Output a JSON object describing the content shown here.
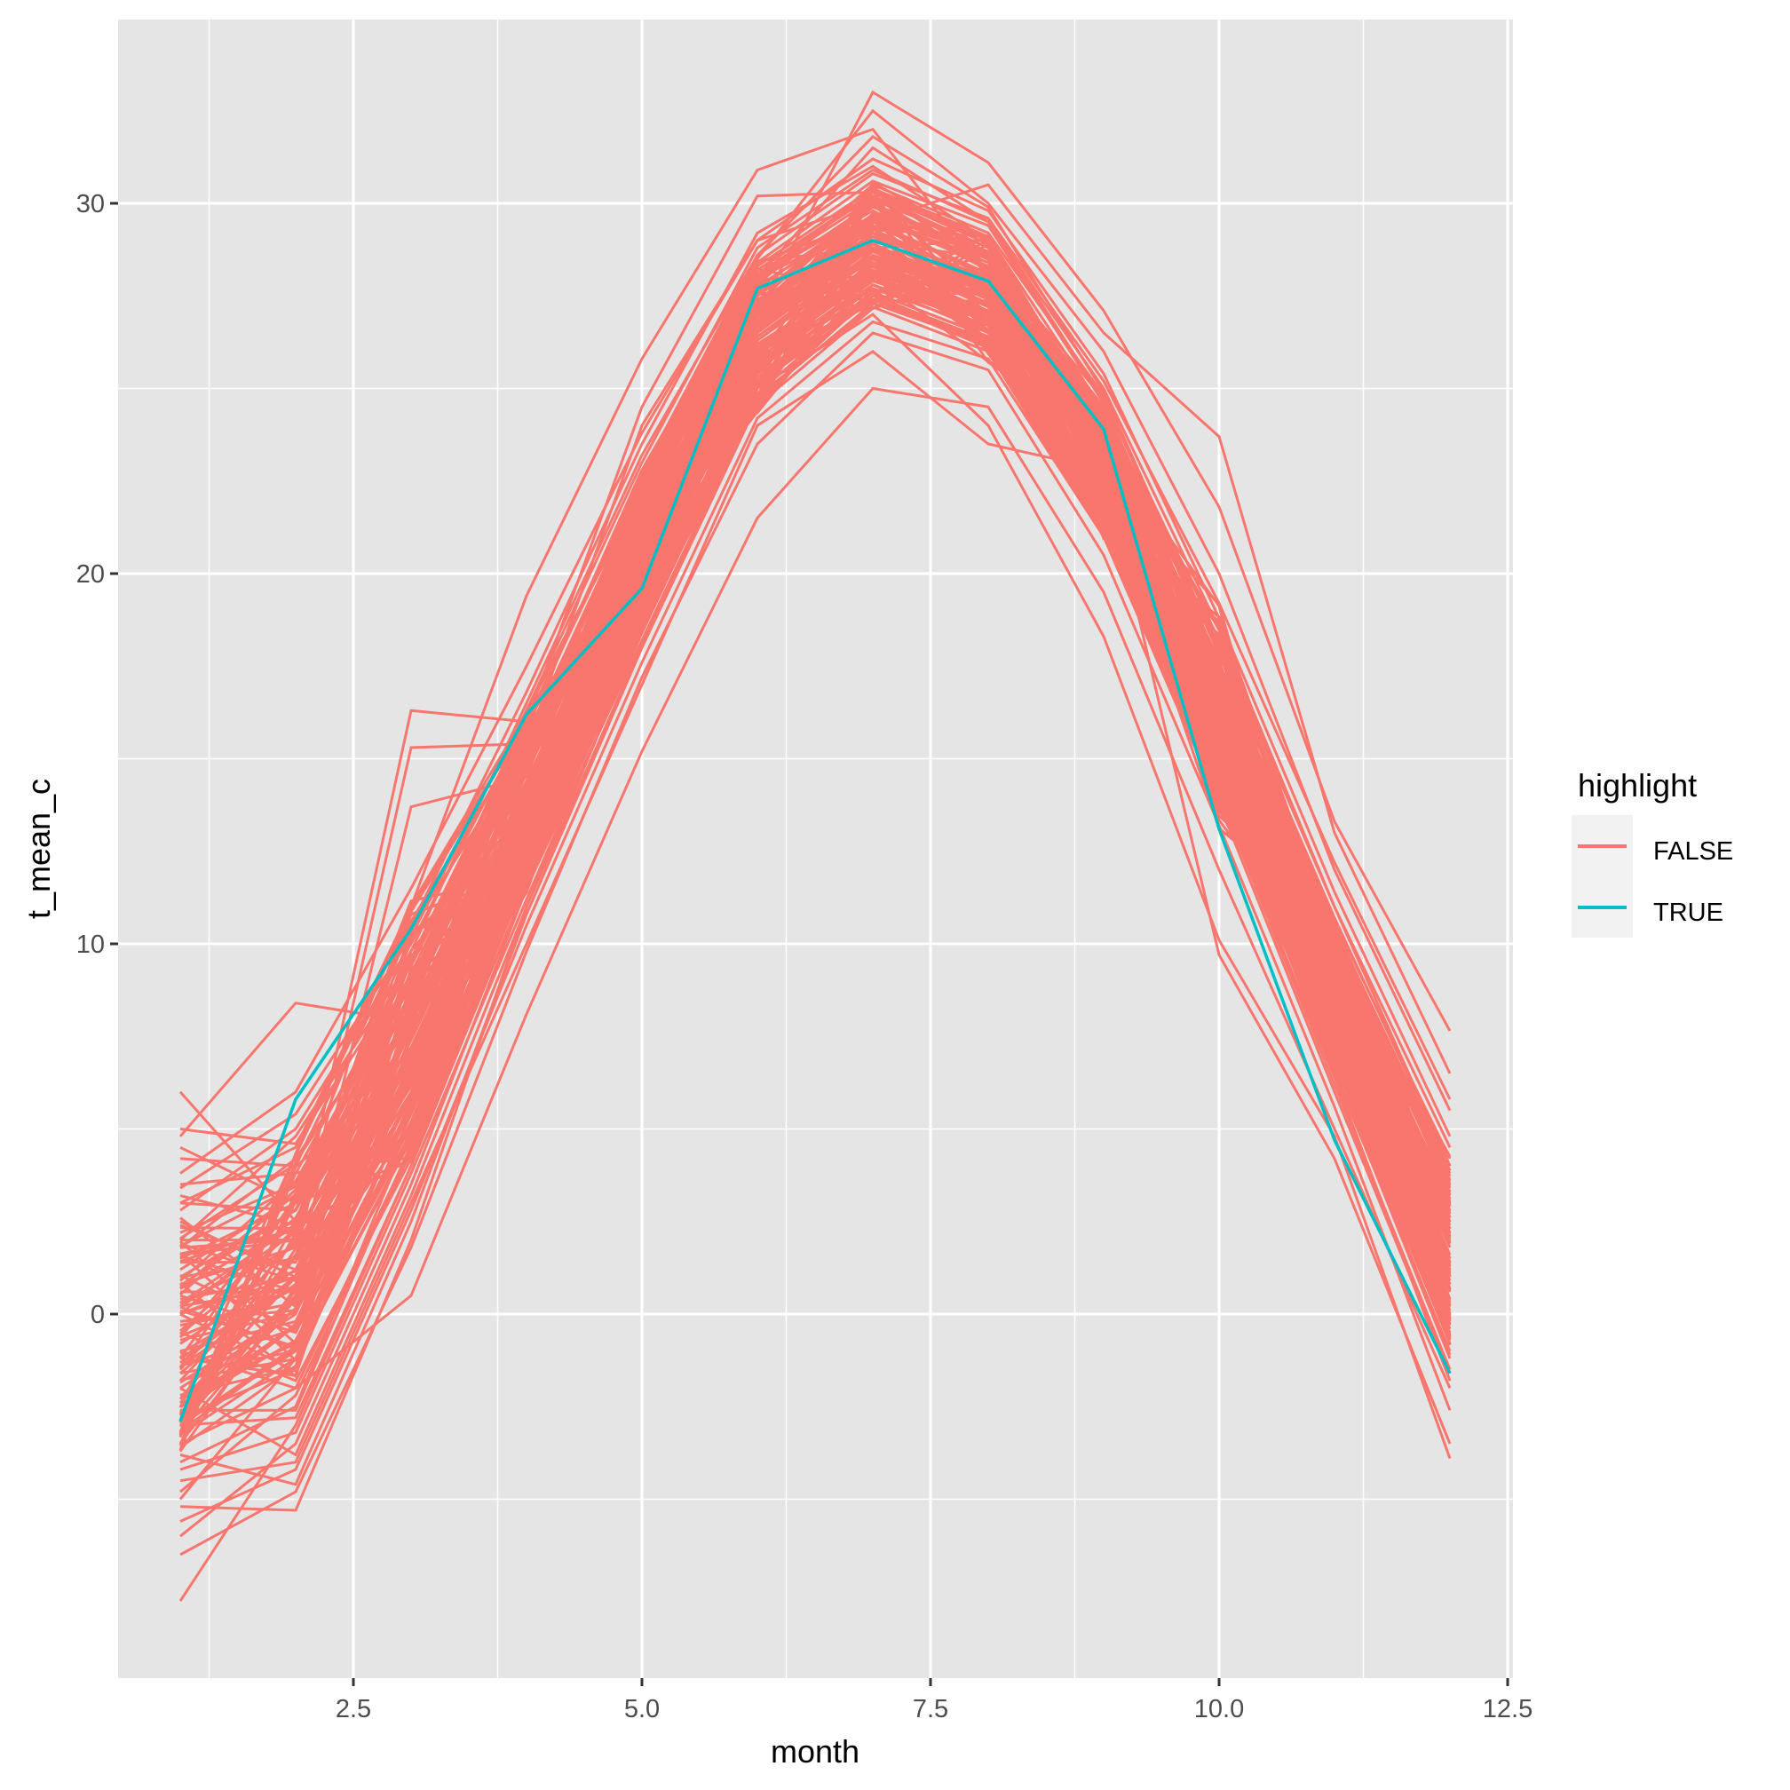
{
  "chart_data": {
    "type": "line",
    "title": "",
    "xlabel": "month",
    "ylabel": "t_mean_c",
    "xlim": [
      0.45,
      12.55
    ],
    "ylim": [
      -9.2,
      34.9
    ],
    "x_ticks": [
      2.5,
      5.0,
      7.5,
      10.0,
      12.5
    ],
    "x_tick_labels": [
      "2.5",
      "5.0",
      "7.5",
      "10.0",
      "12.5"
    ],
    "y_ticks": [
      0,
      10,
      20,
      30
    ],
    "y_tick_labels": [
      "0",
      "10",
      "20",
      "30"
    ],
    "grid": true,
    "legend": {
      "title": "highlight",
      "position": "right",
      "entries": [
        {
          "label": "FALSE",
          "color": "#F8766D"
        },
        {
          "label": "TRUE",
          "color": "#00BFC4"
        }
      ]
    },
    "x": [
      1,
      2,
      3,
      4,
      5,
      6,
      7,
      8,
      9,
      10,
      11,
      12
    ],
    "series": [
      {
        "name": "TRUE",
        "color": "#00BFC4",
        "values": [
          -2.9,
          5.8,
          10.4,
          16.2,
          19.6,
          27.7,
          29.0,
          27.9,
          23.9,
          13.1,
          4.7,
          -1.6
        ]
      }
    ],
    "false_envelope": {
      "min": [
        -7.75,
        -5.3,
        0.5,
        8.1,
        15.2,
        21.5,
        25.0,
        23.5,
        18.3,
        9.7,
        4.2,
        -3.9
      ],
      "max": [
        6.0,
        8.4,
        16.3,
        19.4,
        25.8,
        30.9,
        33.0,
        31.1,
        27.1,
        23.7,
        13.3,
        7.65
      ],
      "typical_mean": [
        -0.5,
        1.2,
        7.0,
        13.8,
        20.5,
        26.5,
        28.9,
        27.5,
        22.8,
        15.8,
        8.3,
        1.5
      ]
    },
    "false_series": [
      [
        6.0,
        2.5,
        9.0,
        15.0,
        22.0,
        27.0,
        29.5,
        28.0,
        23.0,
        16.0,
        9.0,
        2.0
      ],
      [
        -7.75,
        -3.0,
        4.0,
        12.0,
        19.0,
        26.0,
        28.0,
        27.0,
        22.0,
        15.0,
        7.0,
        0.0
      ],
      [
        4.8,
        8.4,
        7.9,
        14.0,
        21.0,
        27.5,
        30.0,
        28.5,
        23.5,
        16.5,
        9.5,
        2.5
      ],
      [
        -5.2,
        -5.3,
        2.0,
        11.0,
        18.5,
        25.5,
        28.5,
        27.0,
        22.0,
        14.5,
        6.5,
        -1.0
      ],
      [
        2.0,
        2.0,
        16.3,
        16.0,
        24.5,
        30.2,
        30.3,
        29.0,
        24.0,
        17.0,
        10.0,
        3.0
      ],
      [
        1.0,
        1.5,
        15.3,
        15.4,
        24.0,
        29.0,
        30.0,
        28.5,
        24.5,
        18.0,
        10.5,
        3.5
      ],
      [
        -1.0,
        -2.0,
        0.5,
        8.1,
        15.2,
        21.5,
        25.0,
        24.5,
        19.5,
        12.0,
        5.0,
        -2.0
      ],
      [
        0.0,
        1.0,
        13.7,
        14.5,
        22.5,
        28.0,
        31.5,
        29.5,
        25.0,
        18.5,
        11.0,
        4.0
      ],
      [
        3.0,
        4.5,
        11.0,
        19.4,
        25.8,
        30.9,
        32.0,
        28.0,
        23.0,
        14.0,
        8.0,
        1.0
      ],
      [
        -3.0,
        -1.0,
        6.5,
        13.0,
        20.0,
        27.0,
        33.0,
        31.1,
        27.1,
        21.8,
        13.3,
        7.65
      ],
      [
        -2.5,
        0.5,
        7.5,
        14.2,
        21.0,
        26.5,
        29.5,
        30.5,
        26.5,
        23.7,
        13.0,
        6.5
      ],
      [
        1.5,
        3.0,
        8.5,
        15.0,
        22.5,
        28.5,
        32.5,
        30.0,
        26.0,
        20.0,
        12.0,
        5.5
      ],
      [
        -4.5,
        -4.0,
        3.0,
        10.0,
        17.0,
        24.0,
        26.0,
        23.5,
        22.8,
        9.7,
        4.2,
        -3.5
      ],
      [
        -4.0,
        -2.5,
        5.0,
        12.5,
        19.5,
        25.0,
        27.0,
        24.0,
        18.3,
        10.1,
        4.8,
        -3.9
      ],
      [
        2.5,
        1.0,
        6.0,
        13.5,
        21.5,
        27.0,
        28.5,
        27.5,
        23.0,
        16.0,
        8.5,
        1.5
      ],
      [
        0.5,
        -0.5,
        5.5,
        12.8,
        20.8,
        26.8,
        28.8,
        27.8,
        22.5,
        15.5,
        8.0,
        0.8
      ],
      [
        -1.5,
        2.0,
        7.8,
        14.6,
        21.2,
        27.3,
        29.3,
        27.6,
        22.9,
        16.2,
        8.8,
        1.8
      ],
      [
        -2.0,
        0.0,
        6.8,
        13.2,
        19.8,
        26.2,
        28.2,
        26.8,
        21.8,
        15.0,
        7.6,
        0.2
      ],
      [
        3.5,
        3.8,
        9.5,
        15.8,
        22.8,
        28.2,
        30.2,
        28.8,
        24.2,
        17.5,
        10.2,
        3.8
      ],
      [
        -3.5,
        -2.0,
        4.5,
        12.0,
        18.8,
        25.2,
        27.5,
        26.2,
        21.2,
        14.2,
        6.8,
        -0.8
      ],
      [
        1.0,
        2.8,
        8.2,
        14.8,
        21.8,
        27.8,
        30.5,
        29.2,
        24.8,
        17.8,
        10.6,
        4.2
      ],
      [
        -0.8,
        1.2,
        7.2,
        13.9,
        20.4,
        26.4,
        28.7,
        27.3,
        22.7,
        15.8,
        8.4,
        1.2
      ],
      [
        4.2,
        4.0,
        10.5,
        16.8,
        23.5,
        29.2,
        31.0,
        29.0,
        24.0,
        16.8,
        9.2,
        2.2
      ],
      [
        -6.0,
        -3.5,
        3.5,
        11.5,
        18.2,
        24.8,
        27.2,
        26.0,
        21.0,
        14.0,
        6.2,
        -1.5
      ],
      [
        0.2,
        2.2,
        9.8,
        16.5,
        23.2,
        28.6,
        30.8,
        29.6,
        25.2,
        19.2,
        12.2,
        5.8
      ],
      [
        -2.8,
        -1.5,
        5.8,
        12.9,
        19.6,
        25.8,
        28.0,
        26.6,
        21.6,
        14.8,
        7.2,
        -0.3
      ],
      [
        2.2,
        3.5,
        9.2,
        15.6,
        22.2,
        28.0,
        29.8,
        28.2,
        23.6,
        16.6,
        9.0,
        2.6
      ],
      [
        -1.2,
        0.8,
        6.2,
        13.4,
        20.2,
        26.6,
        29.0,
        27.9,
        23.2,
        16.4,
        8.9,
        1.6
      ],
      [
        1.8,
        4.2,
        8.8,
        15.2,
        21.6,
        27.6,
        29.6,
        28.4,
        23.8,
        16.9,
        9.6,
        3.2
      ],
      [
        -3.8,
        -4.6,
        2.5,
        10.8,
        18.0,
        24.6,
        27.6,
        26.4,
        21.4,
        14.4,
        6.6,
        -1.2
      ],
      [
        0.8,
        1.8,
        7.6,
        14.4,
        21.0,
        27.0,
        29.2,
        27.7,
        23.0,
        16.1,
        8.7,
        1.4
      ],
      [
        -0.3,
        0.3,
        6.6,
        13.6,
        20.6,
        26.9,
        29.4,
        28.1,
        23.4,
        16.7,
        9.3,
        2.4
      ],
      [
        2.8,
        5.0,
        10.0,
        16.0,
        22.6,
        28.4,
        30.6,
        29.4,
        24.6,
        17.6,
        10.4,
        3.6
      ],
      [
        -2.2,
        -0.8,
        5.2,
        12.6,
        19.4,
        25.6,
        27.8,
        26.5,
        21.5,
        14.6,
        7.0,
        -0.5
      ],
      [
        -5.0,
        -1.2,
        4.8,
        12.2,
        19.0,
        25.4,
        27.4,
        26.1,
        21.1,
        14.1,
        6.4,
        -1.8
      ],
      [
        3.2,
        2.4,
        8.6,
        15.4,
        22.4,
        28.3,
        30.4,
        29.1,
        24.4,
        17.2,
        9.8,
        3.0
      ],
      [
        -1.8,
        1.6,
        7.4,
        14.0,
        20.6,
        26.7,
        28.9,
        27.4,
        22.6,
        15.6,
        8.1,
        0.9
      ],
      [
        0.6,
        0.6,
        6.4,
        13.3,
        20.0,
        26.1,
        28.4,
        27.1,
        22.4,
        15.4,
        7.9,
        0.6
      ],
      [
        -4.2,
        -3.2,
        3.8,
        11.2,
        18.4,
        25.0,
        27.8,
        26.7,
        21.9,
        15.2,
        7.4,
        -0.2
      ],
      [
        1.2,
        3.2,
        9.0,
        15.5,
        22.0,
        27.9,
        30.0,
        28.6,
        24.1,
        17.4,
        10.0,
        3.4
      ],
      [
        -0.5,
        -1.8,
        4.2,
        11.8,
        18.6,
        25.2,
        27.5,
        26.3,
        21.3,
        14.3,
        6.9,
        -0.6
      ],
      [
        2.6,
        0.2,
        5.6,
        12.7,
        19.9,
        26.3,
        28.6,
        27.2,
        22.3,
        15.3,
        7.8,
        0.4
      ],
      [
        -3.2,
        0.4,
        7.0,
        14.1,
        21.1,
        27.2,
        29.7,
        28.3,
        23.7,
        17.0,
        9.7,
        2.9
      ],
      [
        0.0,
        2.6,
        8.0,
        14.7,
        21.4,
        27.4,
        29.1,
        27.5,
        22.7,
        15.9,
        8.6,
        1.3
      ],
      [
        -2.6,
        -2.6,
        4.6,
        12.3,
        19.2,
        25.9,
        28.1,
        27.0,
        22.2,
        15.5,
        8.2,
        1.0
      ],
      [
        4.5,
        3.0,
        7.2,
        13.8,
        20.7,
        26.6,
        28.9,
        27.6,
        22.8,
        15.7,
        8.3,
        1.1
      ],
      [
        -6.5,
        -4.8,
        1.8,
        9.8,
        17.2,
        23.5,
        26.5,
        25.5,
        20.5,
        13.2,
        5.6,
        -2.6
      ],
      [
        1.4,
        1.4,
        7.9,
        14.3,
        21.3,
        27.1,
        29.3,
        27.9,
        23.1,
        16.2,
        8.8,
        1.9
      ],
      [
        -1.0,
        -0.2,
        6.0,
        13.1,
        19.7,
        26.0,
        28.3,
        27.0,
        22.1,
        15.1,
        7.5,
        0.1
      ],
      [
        3.8,
        6.0,
        11.5,
        17.5,
        23.8,
        29.0,
        31.2,
        29.8,
        25.4,
        18.8,
        11.4,
        4.8
      ],
      [
        -3.6,
        -1.4,
        5.4,
        12.4,
        19.3,
        25.7,
        27.9,
        26.9,
        22.0,
        15.0,
        7.3,
        -0.1
      ],
      [
        0.4,
        1.0,
        6.9,
        13.7,
        20.3,
        26.5,
        28.8,
        27.6,
        22.9,
        16.0,
        8.5,
        1.5
      ],
      [
        2.0,
        4.8,
        9.6,
        15.9,
        22.7,
        28.6,
        31.8,
        29.9,
        24.9,
        17.9,
        10.7,
        4.0
      ],
      [
        -2.0,
        -3.8,
        3.2,
        11.0,
        18.1,
        24.7,
        27.3,
        26.2,
        21.6,
        14.7,
        7.1,
        -0.4
      ],
      [
        1.6,
        2.0,
        8.4,
        15.1,
        21.9,
        27.7,
        29.9,
        28.7,
        24.3,
        17.3,
        10.1,
        3.3
      ],
      [
        -0.6,
        0.7,
        6.3,
        13.5,
        20.1,
        26.3,
        28.5,
        27.3,
        22.5,
        15.6,
        8.0,
        0.7
      ],
      [
        2.4,
        1.2,
        7.4,
        14.0,
        20.9,
        26.9,
        29.1,
        28.0,
        23.3,
        16.6,
        9.1,
        2.3
      ],
      [
        -4.8,
        -2.2,
        4.4,
        11.9,
        18.9,
        25.3,
        27.6,
        26.4,
        21.7,
        14.9,
        7.3,
        -0.7
      ],
      [
        0.9,
        3.6,
        8.9,
        15.3,
        22.1,
        28.1,
        30.1,
        28.8,
        24.2,
        17.1,
        9.9,
        3.1
      ],
      [
        -1.4,
        -0.4,
        5.9,
        13.0,
        19.6,
        25.9,
        28.2,
        26.9,
        22.2,
        15.2,
        7.7,
        0.3
      ],
      [
        3.0,
        2.8,
        8.7,
        15.0,
        21.7,
        27.5,
        29.7,
        28.3,
        23.6,
        16.7,
        9.4,
        2.6
      ],
      [
        -2.4,
        1.0,
        6.7,
        13.6,
        20.5,
        26.6,
        28.8,
        27.4,
        22.6,
        15.7,
        8.1,
        0.8
      ],
      [
        5.0,
        4.6,
        9.4,
        15.6,
        22.3,
        28.2,
        30.3,
        28.9,
        24.0,
        17.0,
        9.6,
        2.8
      ],
      [
        -5.6,
        -4.2,
        2.8,
        10.5,
        17.6,
        24.2,
        26.8,
        25.8,
        21.0,
        13.8,
        6.0,
        -1.6
      ],
      [
        0.3,
        2.4,
        8.1,
        14.9,
        21.5,
        27.3,
        29.5,
        28.1,
        23.5,
        16.8,
        9.5,
        2.7
      ],
      [
        -1.6,
        -1.0,
        5.1,
        12.5,
        19.1,
        25.5,
        27.7,
        26.6,
        21.9,
        15.0,
        7.5,
        -0.2
      ],
      [
        1.9,
        0.9,
        7.1,
        13.9,
        20.8,
        26.8,
        29.0,
        27.8,
        23.2,
        16.3,
        9.0,
        2.1
      ],
      [
        -3.0,
        -2.8,
        4.0,
        11.6,
        18.5,
        25.1,
        27.4,
        26.3,
        21.4,
        14.5,
        6.8,
        -1.1
      ],
      [
        3.4,
        5.4,
        10.2,
        16.3,
        23.0,
        28.8,
        30.9,
        29.5,
        24.7,
        18.2,
        11.0,
        4.5
      ],
      [
        -0.2,
        0.1,
        6.5,
        13.4,
        20.2,
        26.4,
        28.6,
        27.5,
        22.8,
        15.9,
        8.4,
        1.2
      ]
    ]
  }
}
